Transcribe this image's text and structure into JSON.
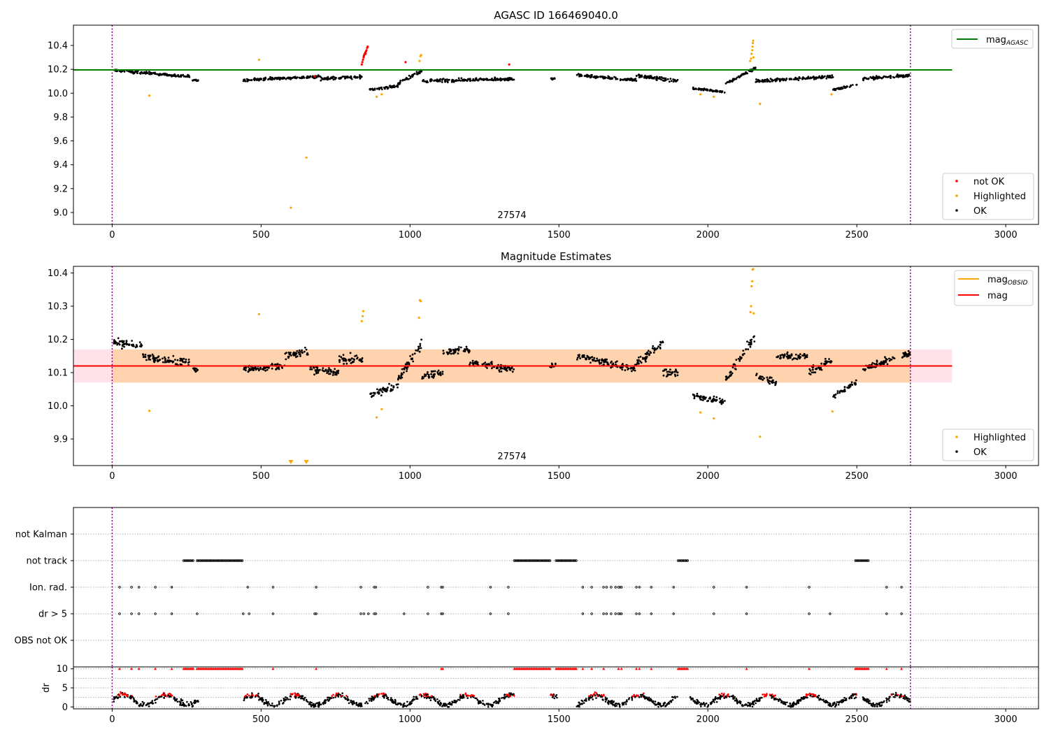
{
  "figure": {
    "panel1_title": "AGASC ID 166469040.0",
    "panel2_title": "Magnitude Estimates",
    "obsid_label": "27574"
  },
  "chart_data": [
    {
      "type": "scatter",
      "title": "AGASC ID 166469040.0",
      "xlabel": "",
      "ylabel": "",
      "xlim": [
        -130,
        3110
      ],
      "ylim": [
        8.9,
        10.57
      ],
      "xticks": [
        0,
        500,
        1000,
        1500,
        2000,
        2500,
        3000
      ],
      "yticks": [
        9.0,
        9.2,
        9.4,
        9.6,
        9.8,
        10.0,
        10.2,
        10.4
      ],
      "grid": false,
      "vlines": [
        0,
        2680
      ],
      "hlines": [
        {
          "name": "mag_AGASC",
          "y": 10.195,
          "x_range": [
            -130,
            2820
          ],
          "color": "#008000"
        }
      ],
      "legend_lines": [
        {
          "label": "mag",
          "sub": "AGASC",
          "color": "#008000"
        }
      ],
      "legend_points": [
        {
          "label": "not OK",
          "color": "#ff0000"
        },
        {
          "label": "Highlighted",
          "color": "#ffa500"
        },
        {
          "label": "OK",
          "color": "#000000"
        }
      ],
      "ok_segments": [
        {
          "x": [
            5,
            260
          ],
          "y": [
            10.19,
            10.14
          ],
          "sd": 0.02
        },
        {
          "x": [
            270,
            290
          ],
          "y": [
            10.11,
            10.11
          ],
          "sd": 0.015
        },
        {
          "x": [
            440,
            700
          ],
          "y": [
            10.11,
            10.14
          ],
          "sd": 0.02
        },
        {
          "x": [
            700,
            840
          ],
          "y": [
            10.12,
            10.14
          ],
          "sd": 0.025
        },
        {
          "x": [
            865,
            960
          ],
          "y": [
            10.03,
            10.06
          ],
          "sd": 0.02
        },
        {
          "x": [
            960,
            1040
          ],
          "y": [
            10.08,
            10.19
          ],
          "sd": 0.025
        },
        {
          "x": [
            1040,
            1350
          ],
          "y": [
            10.1,
            10.12
          ],
          "sd": 0.025
        },
        {
          "x": [
            1470,
            1490
          ],
          "y": [
            10.12,
            10.12
          ],
          "sd": 0.015
        },
        {
          "x": [
            1560,
            1760
          ],
          "y": [
            10.15,
            10.11
          ],
          "sd": 0.02
        },
        {
          "x": [
            1760,
            1900
          ],
          "y": [
            10.15,
            10.1
          ],
          "sd": 0.025
        },
        {
          "x": [
            1950,
            2060
          ],
          "y": [
            10.04,
            10.01
          ],
          "sd": 0.015
        },
        {
          "x": [
            2060,
            2160
          ],
          "y": [
            10.08,
            10.21
          ],
          "sd": 0.025
        },
        {
          "x": [
            2160,
            2420
          ],
          "y": [
            10.1,
            10.14
          ],
          "sd": 0.025
        },
        {
          "x": [
            2420,
            2500
          ],
          "y": [
            10.03,
            10.07
          ],
          "sd": 0.015
        },
        {
          "x": [
            2520,
            2680
          ],
          "y": [
            10.12,
            10.15
          ],
          "sd": 0.02
        }
      ],
      "not_ok_points": [
        {
          "x": 838,
          "y": 10.24
        },
        {
          "x": 840,
          "y": 10.26
        },
        {
          "x": 842,
          "y": 10.28
        },
        {
          "x": 844,
          "y": 10.3
        },
        {
          "x": 846,
          "y": 10.32
        },
        {
          "x": 848,
          "y": 10.33
        },
        {
          "x": 850,
          "y": 10.34
        },
        {
          "x": 852,
          "y": 10.35
        },
        {
          "x": 854,
          "y": 10.36
        },
        {
          "x": 856,
          "y": 10.38
        },
        {
          "x": 858,
          "y": 10.39
        },
        {
          "x": 845,
          "y": 10.31
        },
        {
          "x": 851,
          "y": 10.33
        },
        {
          "x": 985,
          "y": 10.26
        },
        {
          "x": 1333,
          "y": 10.24
        },
        {
          "x": 680,
          "y": 10.14
        }
      ],
      "highlighted_points": [
        {
          "x": 125,
          "y": 9.98
        },
        {
          "x": 493,
          "y": 10.28
        },
        {
          "x": 600,
          "y": 9.04
        },
        {
          "x": 652,
          "y": 9.46
        },
        {
          "x": 888,
          "y": 9.97
        },
        {
          "x": 905,
          "y": 9.99
        },
        {
          "x": 1032,
          "y": 10.27
        },
        {
          "x": 1035,
          "y": 10.31
        },
        {
          "x": 1037,
          "y": 10.32
        },
        {
          "x": 1975,
          "y": 9.99
        },
        {
          "x": 2020,
          "y": 9.97
        },
        {
          "x": 2142,
          "y": 10.27
        },
        {
          "x": 2145,
          "y": 10.29
        },
        {
          "x": 2147,
          "y": 10.33
        },
        {
          "x": 2149,
          "y": 10.36
        },
        {
          "x": 2150,
          "y": 10.39
        },
        {
          "x": 2151,
          "y": 10.42
        },
        {
          "x": 2152,
          "y": 10.44
        },
        {
          "x": 2153,
          "y": 10.3
        },
        {
          "x": 2175,
          "y": 9.91
        },
        {
          "x": 2415,
          "y": 9.99
        }
      ]
    },
    {
      "type": "scatter",
      "title": "Magnitude Estimates",
      "xlabel": "",
      "ylabel": "",
      "xlim": [
        -130,
        3110
      ],
      "ylim": [
        9.82,
        10.42
      ],
      "xticks": [
        0,
        500,
        1000,
        1500,
        2000,
        2500,
        3000
      ],
      "yticks": [
        9.9,
        10.0,
        10.1,
        10.2,
        10.3,
        10.4
      ],
      "grid": false,
      "vlines": [
        0,
        2680
      ],
      "hlines": [
        {
          "name": "mag",
          "y": 10.12,
          "x_range": [
            -130,
            2820
          ],
          "color": "#ff0000"
        }
      ],
      "bands": [
        {
          "y_range": [
            10.07,
            10.17
          ],
          "x_range": [
            -130,
            2820
          ],
          "color": "#ffc0cb",
          "opacity": 0.45
        },
        {
          "y_range": [
            10.07,
            10.17
          ],
          "x_range": [
            0,
            2680
          ],
          "color": "#ffa500",
          "opacity": 0.25
        }
      ],
      "obsid_mag_segments": [
        {
          "x": [
            0,
            2680
          ],
          "y": 10.12,
          "color": "#ffa500"
        }
      ],
      "legend_lines": [
        {
          "label": "mag",
          "sub": "OBSID",
          "color": "#ffa500"
        },
        {
          "label": "mag",
          "sub": "",
          "color": "#ff0000"
        }
      ],
      "legend_points": [
        {
          "label": "Highlighted",
          "color": "#ffa500"
        },
        {
          "label": "OK",
          "color": "#000000"
        }
      ],
      "ok_segments": [
        {
          "x": [
            5,
            100
          ],
          "y": [
            10.19,
            10.18
          ],
          "sd": 0.022
        },
        {
          "x": [
            100,
            260
          ],
          "y": [
            10.15,
            10.13
          ],
          "sd": 0.02
        },
        {
          "x": [
            270,
            290
          ],
          "y": [
            10.11,
            10.11
          ],
          "sd": 0.015
        },
        {
          "x": [
            440,
            580
          ],
          "y": [
            10.11,
            10.12
          ],
          "sd": 0.018
        },
        {
          "x": [
            580,
            660
          ],
          "y": [
            10.15,
            10.16
          ],
          "sd": 0.025
        },
        {
          "x": [
            660,
            760
          ],
          "y": [
            10.11,
            10.1
          ],
          "sd": 0.02
        },
        {
          "x": [
            760,
            840
          ],
          "y": [
            10.14,
            10.14
          ],
          "sd": 0.025
        },
        {
          "x": [
            865,
            960
          ],
          "y": [
            10.03,
            10.06
          ],
          "sd": 0.02
        },
        {
          "x": [
            960,
            1040
          ],
          "y": [
            10.08,
            10.19
          ],
          "sd": 0.025
        },
        {
          "x": [
            1040,
            1110
          ],
          "y": [
            10.09,
            10.1
          ],
          "sd": 0.02
        },
        {
          "x": [
            1110,
            1200
          ],
          "y": [
            10.16,
            10.17
          ],
          "sd": 0.02
        },
        {
          "x": [
            1200,
            1350
          ],
          "y": [
            10.13,
            10.11
          ],
          "sd": 0.02
        },
        {
          "x": [
            1470,
            1490
          ],
          "y": [
            10.12,
            10.12
          ],
          "sd": 0.015
        },
        {
          "x": [
            1560,
            1760
          ],
          "y": [
            10.15,
            10.11
          ],
          "sd": 0.02
        },
        {
          "x": [
            1760,
            1850
          ],
          "y": [
            10.13,
            10.19
          ],
          "sd": 0.025
        },
        {
          "x": [
            1850,
            1900
          ],
          "y": [
            10.1,
            10.1
          ],
          "sd": 0.02
        },
        {
          "x": [
            1950,
            2060
          ],
          "y": [
            10.03,
            10.01
          ],
          "sd": 0.015
        },
        {
          "x": [
            2060,
            2160
          ],
          "y": [
            10.08,
            10.21
          ],
          "sd": 0.025
        },
        {
          "x": [
            2160,
            2230
          ],
          "y": [
            10.09,
            10.07
          ],
          "sd": 0.018
        },
        {
          "x": [
            2230,
            2340
          ],
          "y": [
            10.15,
            10.15
          ],
          "sd": 0.018
        },
        {
          "x": [
            2340,
            2420
          ],
          "y": [
            10.1,
            10.14
          ],
          "sd": 0.025
        },
        {
          "x": [
            2420,
            2500
          ],
          "y": [
            10.03,
            10.07
          ],
          "sd": 0.015
        },
        {
          "x": [
            2520,
            2680
          ],
          "y": [
            10.11,
            10.16
          ],
          "sd": 0.02
        }
      ],
      "highlighted_points": [
        {
          "x": 125,
          "y": 9.985
        },
        {
          "x": 493,
          "y": 10.276
        },
        {
          "x": 838,
          "y": 10.255
        },
        {
          "x": 841,
          "y": 10.27
        },
        {
          "x": 843,
          "y": 10.285
        },
        {
          "x": 888,
          "y": 9.965
        },
        {
          "x": 905,
          "y": 9.99
        },
        {
          "x": 1030,
          "y": 10.265
        },
        {
          "x": 1033,
          "y": 10.318
        },
        {
          "x": 1036,
          "y": 10.315
        },
        {
          "x": 1975,
          "y": 9.98
        },
        {
          "x": 2020,
          "y": 9.962
        },
        {
          "x": 2143,
          "y": 10.282
        },
        {
          "x": 2145,
          "y": 10.3
        },
        {
          "x": 2147,
          "y": 10.36
        },
        {
          "x": 2149,
          "y": 10.375
        },
        {
          "x": 2150,
          "y": 10.41
        },
        {
          "x": 2152,
          "y": 10.412
        },
        {
          "x": 2154,
          "y": 10.278
        },
        {
          "x": 2175,
          "y": 9.907
        },
        {
          "x": 2418,
          "y": 9.983
        }
      ],
      "offscale_markers": [
        {
          "x": 600,
          "y": 9.82
        },
        {
          "x": 652,
          "y": 9.82
        }
      ]
    },
    {
      "type": "scatter",
      "title": "",
      "xlabel": "",
      "ylabel": "",
      "xlim": [
        -130,
        3110
      ],
      "categories": [
        "not Kalman",
        "not track",
        "Ion. rad.",
        "dr > 5",
        "OBS not OK"
      ],
      "vlines": [
        0,
        2680
      ],
      "grid": "y-dotted",
      "flags": {
        "not track": [
          [
            240,
            275
          ],
          [
            285,
            440
          ],
          [
            1350,
            1470
          ],
          [
            1490,
            1560
          ],
          [
            1900,
            1935
          ],
          [
            2495,
            2540
          ]
        ],
        "Ion. rad.": [
          25,
          65,
          90,
          145,
          200,
          455,
          540,
          685,
          835,
          880,
          885,
          1060,
          1105,
          1110,
          1270,
          1330,
          1580,
          1610,
          1650,
          1660,
          1675,
          1690,
          1700,
          1705,
          1710,
          1760,
          1770,
          1810,
          1885,
          2020,
          2130,
          2340,
          2600,
          2650
        ],
        "dr > 5": [
          25,
          65,
          90,
          145,
          200,
          285,
          440,
          460,
          540,
          680,
          685,
          835,
          845,
          860,
          880,
          885,
          980,
          1060,
          1105,
          1110,
          1270,
          1330,
          1580,
          1610,
          1650,
          1660,
          1675,
          1690,
          1700,
          1705,
          1710,
          1760,
          1770,
          1810,
          1885,
          2020,
          2130,
          2340,
          2410,
          2600,
          2650
        ]
      }
    },
    {
      "type": "scatter",
      "title": "",
      "xlabel": "",
      "ylabel": "dr",
      "xlim": [
        -130,
        3110
      ],
      "ylim": [
        -0.5,
        10.5
      ],
      "yticks": [
        0,
        5,
        10
      ],
      "grid": "y-dotted",
      "vlines": [
        0,
        2680
      ],
      "saturated_at": 10,
      "saturated_ranges": [
        [
          240,
          275
        ],
        [
          285,
          440
        ],
        [
          1350,
          1470
        ],
        [
          1490,
          1560
        ],
        [
          1900,
          1935
        ],
        [
          2495,
          2540
        ]
      ],
      "saturated_points": [
        25,
        65,
        90,
        145,
        200,
        540,
        685,
        1105,
        1110,
        1580,
        1610,
        1650,
        1700,
        1710,
        1760,
        1770,
        1810,
        2130,
        2340,
        2600,
        2650
      ]
    }
  ]
}
